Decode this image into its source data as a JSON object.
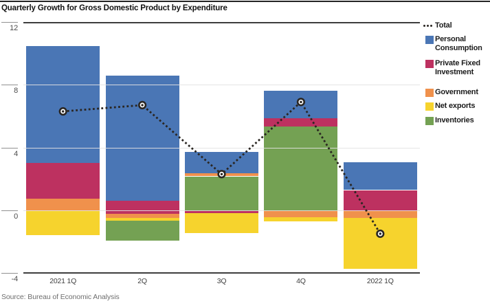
{
  "header": {
    "title": "Quarterly Growth for Gross Domestic Product by Expenditure"
  },
  "source": {
    "text": "Source: Bureau of Economic Analysis"
  },
  "chart_data": {
    "type": "bar",
    "subtype": "stacked-bar-with-line",
    "title": "Quarterly Growth for Gross Domestic Product by Expenditure",
    "xlabel": "",
    "ylabel": "",
    "ylim": [
      -4,
      12
    ],
    "yticks": [
      12,
      8,
      4,
      0,
      -4
    ],
    "gridline_values": [
      8,
      4,
      0
    ],
    "grid": "horizontal",
    "legend_position": "right",
    "categories": [
      "2021 1Q",
      "2Q",
      "3Q",
      "4Q",
      "2022 1Q"
    ],
    "total_line": {
      "key": "total",
      "name": "Total",
      "style": "dotted",
      "color": "#2a2622",
      "marker": "ring-dot",
      "values": [
        6.3,
        6.7,
        2.3,
        6.9,
        -1.5
      ]
    },
    "series": [
      {
        "key": "personal_consumption",
        "name": "Personal Consumption",
        "color": "#4a76b5",
        "values": [
          7.45,
          7.95,
          1.35,
          1.75,
          1.78
        ]
      },
      {
        "key": "private_fixed_investment",
        "name": "Private Fixed Investment",
        "color": "#bd3160",
        "values": [
          2.25,
          0.84,
          -0.18,
          0.53,
          1.28
        ]
      },
      {
        "key": "government",
        "name": "Government",
        "color": "#f0914c",
        "values": [
          0.75,
          -0.26,
          0.21,
          -0.45,
          -0.5
        ]
      },
      {
        "key": "net_exports",
        "name": "Net exports",
        "color": "#f6d32d",
        "values": [
          -1.6,
          -0.18,
          -1.27,
          -0.25,
          -3.22
        ]
      },
      {
        "key": "inventories",
        "name": "Inventories",
        "color": "#74a153",
        "values": [
          0,
          -1.27,
          2.16,
          5.32,
          0
        ]
      }
    ],
    "stack_segments": [
      [
        {
          "s": 0,
          "lo": 3.0,
          "hi": 10.45
        },
        {
          "s": 1,
          "lo": 0.75,
          "hi": 3.0
        },
        {
          "s": 2,
          "lo": 0,
          "hi": 0.75
        },
        {
          "s": 3,
          "lo": -1.6,
          "hi": 0
        }
      ],
      [
        {
          "s": 0,
          "lo": 0.62,
          "hi": 8.57
        },
        {
          "s": 1,
          "lo": -0.22,
          "hi": 0.62
        },
        {
          "s": 2,
          "lo": -0.48,
          "hi": -0.22
        },
        {
          "s": 3,
          "lo": -0.66,
          "hi": -0.48
        },
        {
          "s": 4,
          "lo": -1.93,
          "hi": -0.66
        }
      ],
      [
        {
          "s": 0,
          "lo": 2.37,
          "hi": 3.72
        },
        {
          "s": 2,
          "lo": 2.16,
          "hi": 2.37
        },
        {
          "s": 4,
          "lo": 0,
          "hi": 2.16
        },
        {
          "s": 1,
          "lo": -0.18,
          "hi": 0
        },
        {
          "s": 3,
          "lo": -1.45,
          "hi": -0.18
        }
      ],
      [
        {
          "s": 0,
          "lo": 5.85,
          "hi": 7.6
        },
        {
          "s": 1,
          "lo": 5.32,
          "hi": 5.85
        },
        {
          "s": 4,
          "lo": 0,
          "hi": 5.32
        },
        {
          "s": 2,
          "lo": -0.45,
          "hi": 0
        },
        {
          "s": 3,
          "lo": -0.7,
          "hi": -0.45
        }
      ],
      [
        {
          "s": 0,
          "lo": 1.28,
          "hi": 3.06
        },
        {
          "s": 1,
          "lo": 0,
          "hi": 1.28
        },
        {
          "s": 2,
          "lo": -0.5,
          "hi": 0
        },
        {
          "s": 3,
          "lo": -3.72,
          "hi": -0.5
        }
      ]
    ],
    "legend": {
      "items": [
        {
          "key": "total",
          "label_lines": [
            "Total"
          ],
          "marker": "dotted-line"
        },
        {
          "key": "personal_consumption",
          "label_lines": [
            "Personal",
            "Consumption"
          ],
          "marker": "swatch"
        },
        {
          "key": "private_fixed_investment",
          "label_lines": [
            "Private Fixed",
            "Investment"
          ],
          "marker": "swatch"
        },
        {
          "key": "government",
          "label_lines": [
            "Government"
          ],
          "marker": "swatch"
        },
        {
          "key": "net_exports",
          "label_lines": [
            "Net exports"
          ],
          "marker": "swatch"
        },
        {
          "key": "inventories",
          "label_lines": [
            "Inventories"
          ],
          "marker": "swatch"
        }
      ]
    }
  }
}
